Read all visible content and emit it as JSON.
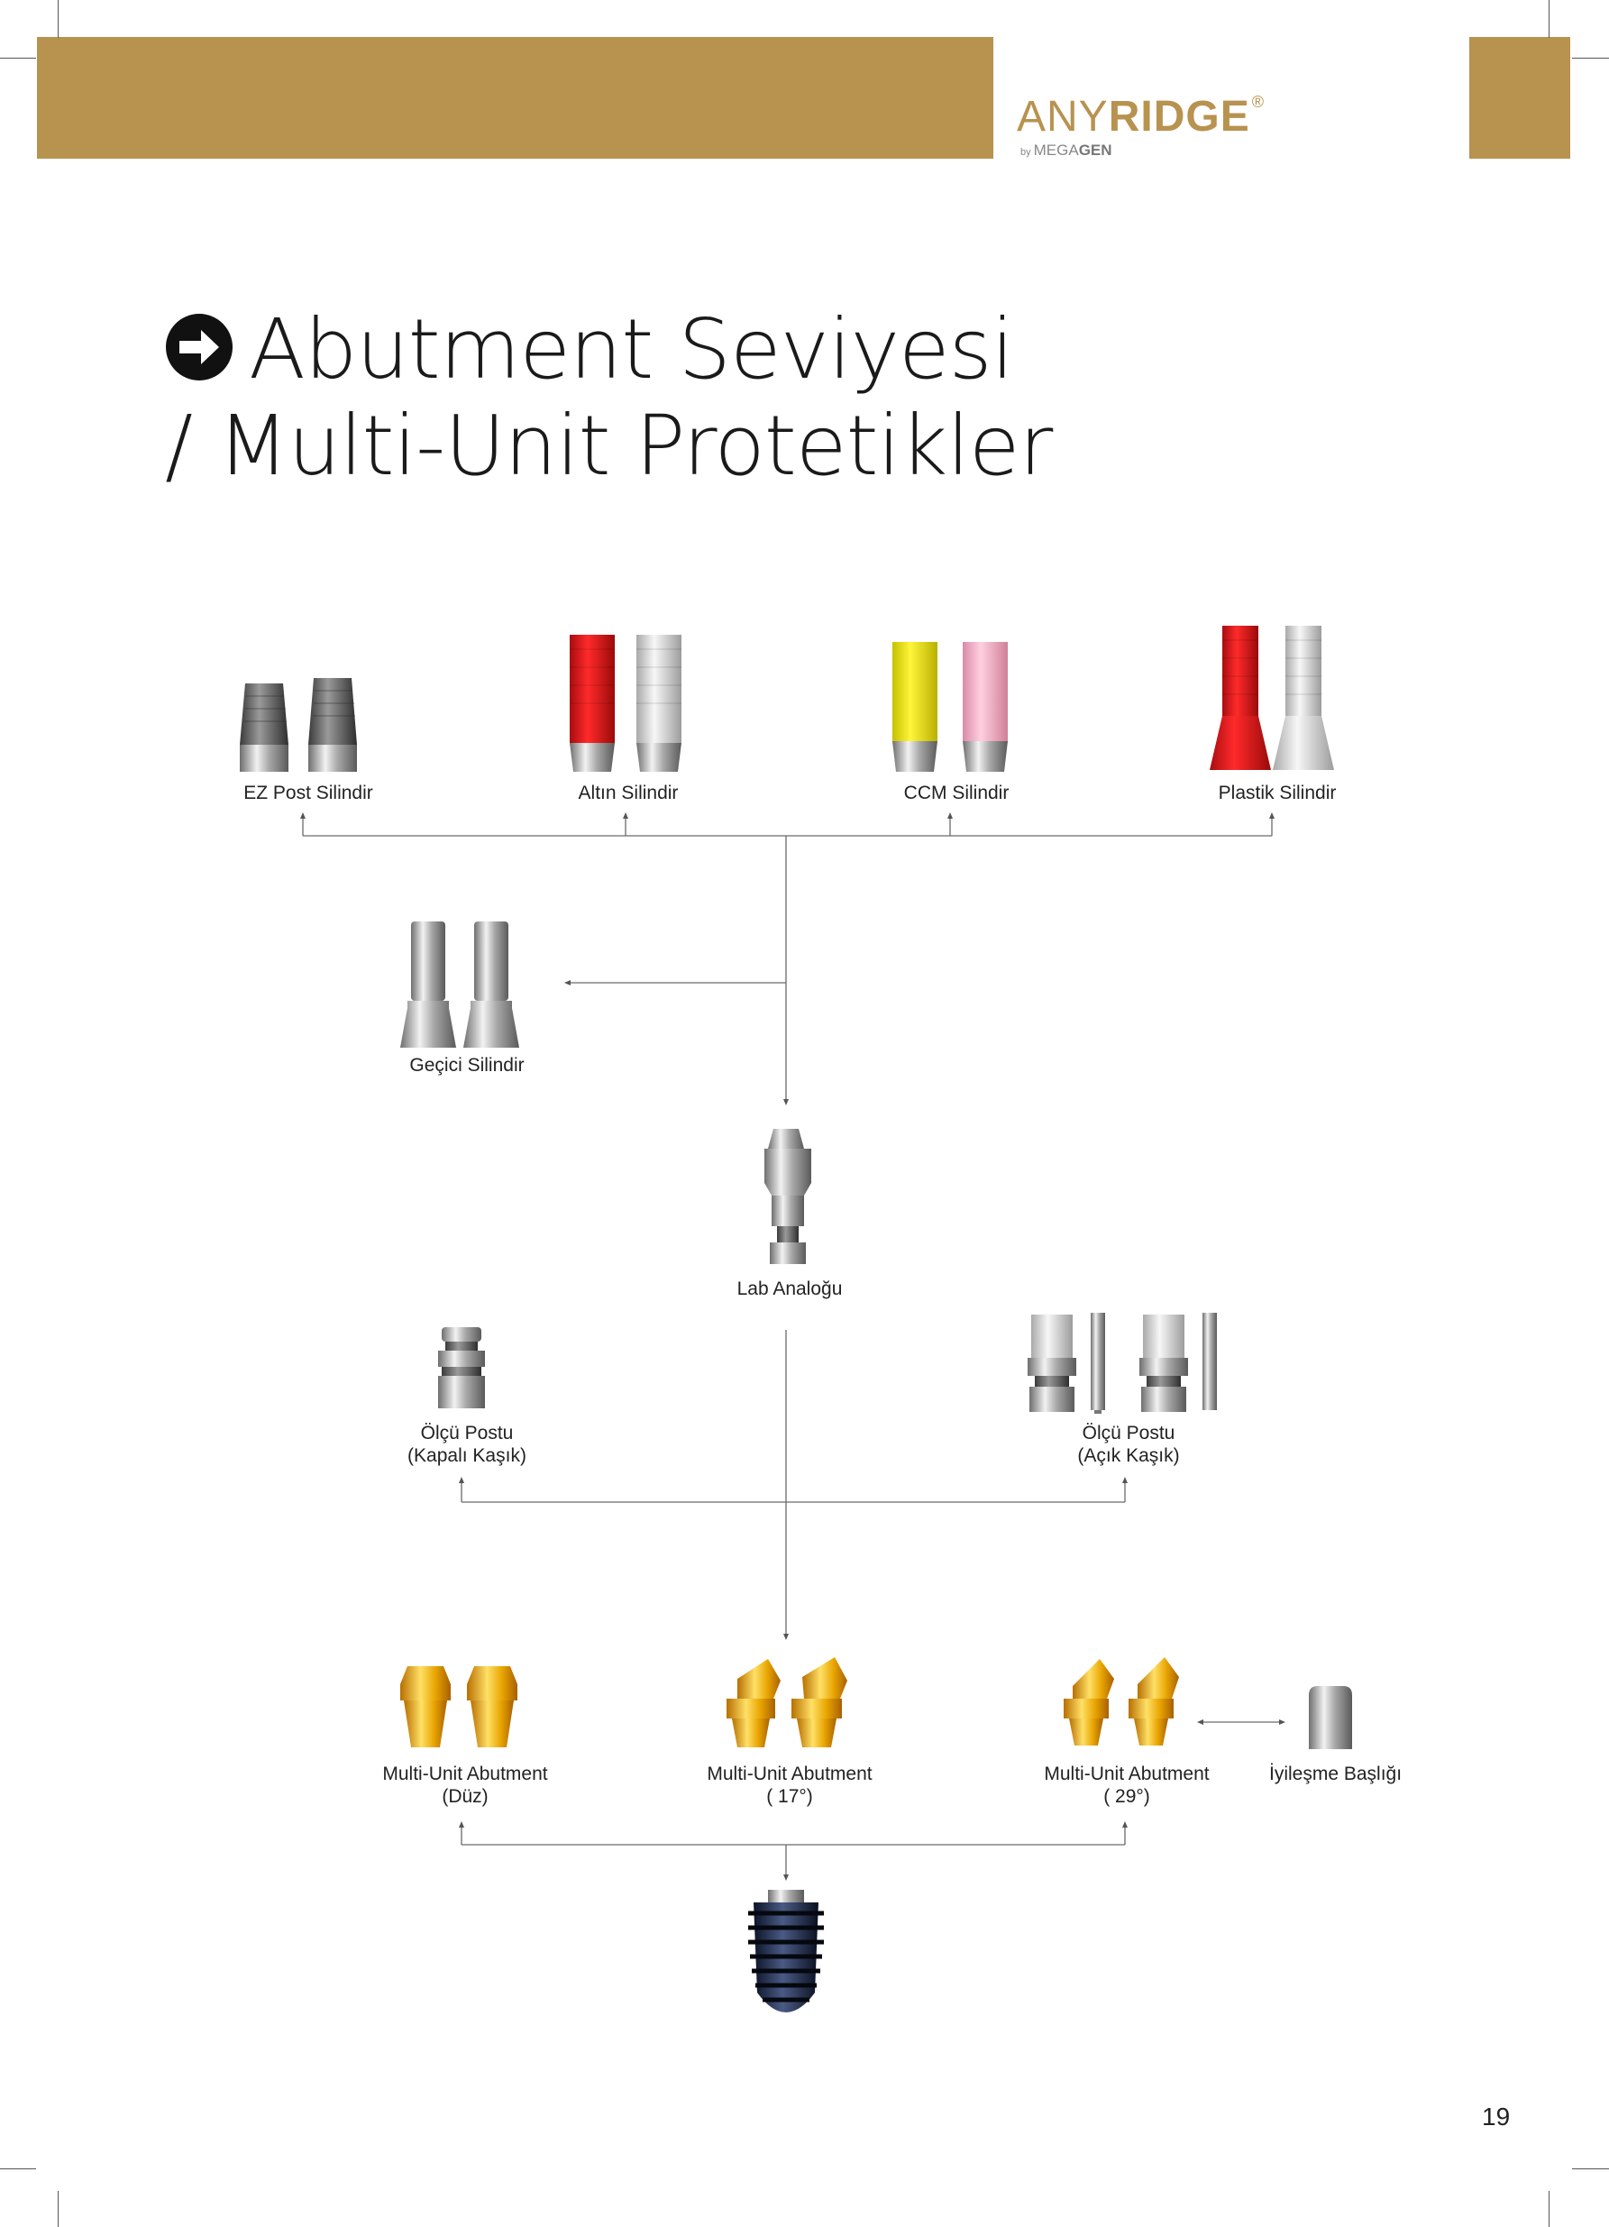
{
  "header": {
    "brand_thin": "ANY",
    "brand_bold": "RIDGE",
    "brand_reg": "®",
    "brand_by": "by",
    "brand_mega": "MEGA",
    "brand_gen": "GEN",
    "band_color": "#b8924f"
  },
  "title": {
    "line1": "Abutment Seviyesi",
    "line2": "/ Multi-Unit Protetikler",
    "icon": "arrow-right-circle-icon"
  },
  "diagram": {
    "ez_post": "EZ Post Silindir",
    "altin": "Altın Silindir",
    "ccm": "CCM Silindir",
    "plastik": "Plastik Silindir",
    "gecici": "Geçici Silindir",
    "lab_analog": "Lab Analoğu",
    "olcu_kapali_1": "Ölçü Postu",
    "olcu_kapali_2": "(Kapalı Kaşık)",
    "olcu_acik_1": "Ölçü Postu",
    "olcu_acik_2": "(Açık Kaşık)",
    "mu_duz_1": "Multi-Unit Abutment",
    "mu_duz_2": "(Düz)",
    "mu_17_1": "Multi-Unit Abutment",
    "mu_17_2": "( 17°)",
    "mu_29_1": "Multi-Unit Abutment",
    "mu_29_2": "( 29°)",
    "healing": "İyileşme Başlığı",
    "implant": "implant-icon"
  },
  "page_number": "19"
}
